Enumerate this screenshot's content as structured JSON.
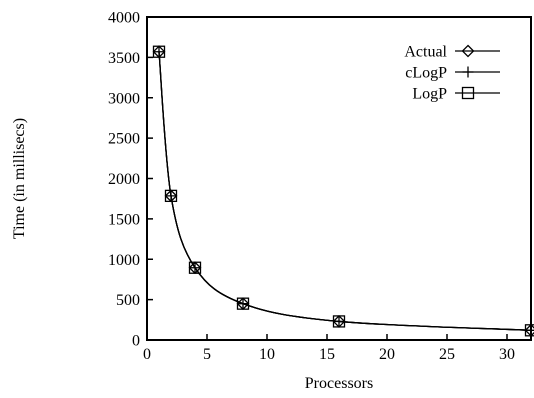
{
  "chart_data": {
    "type": "line",
    "title": "",
    "xlabel": "Processors",
    "ylabel": "Time (in millisecs)",
    "xlim": [
      0,
      32
    ],
    "ylim": [
      0,
      4000
    ],
    "xticks": [
      0,
      5,
      10,
      15,
      20,
      25,
      30
    ],
    "yticks": [
      0,
      500,
      1000,
      1500,
      2000,
      2500,
      3000,
      3500,
      4000
    ],
    "grid": false,
    "legend_position": "top-right",
    "x": [
      1,
      2,
      4,
      8,
      16,
      32
    ],
    "series": [
      {
        "name": "Actual",
        "marker": "diamond",
        "values": [
          3570,
          1785,
          895,
          450,
          230,
          120
        ]
      },
      {
        "name": "cLogP",
        "marker": "plus",
        "values": [
          3570,
          1785,
          895,
          450,
          230,
          120
        ]
      },
      {
        "name": "LogP",
        "marker": "square",
        "values": [
          3570,
          1785,
          895,
          450,
          230,
          120
        ]
      }
    ]
  }
}
